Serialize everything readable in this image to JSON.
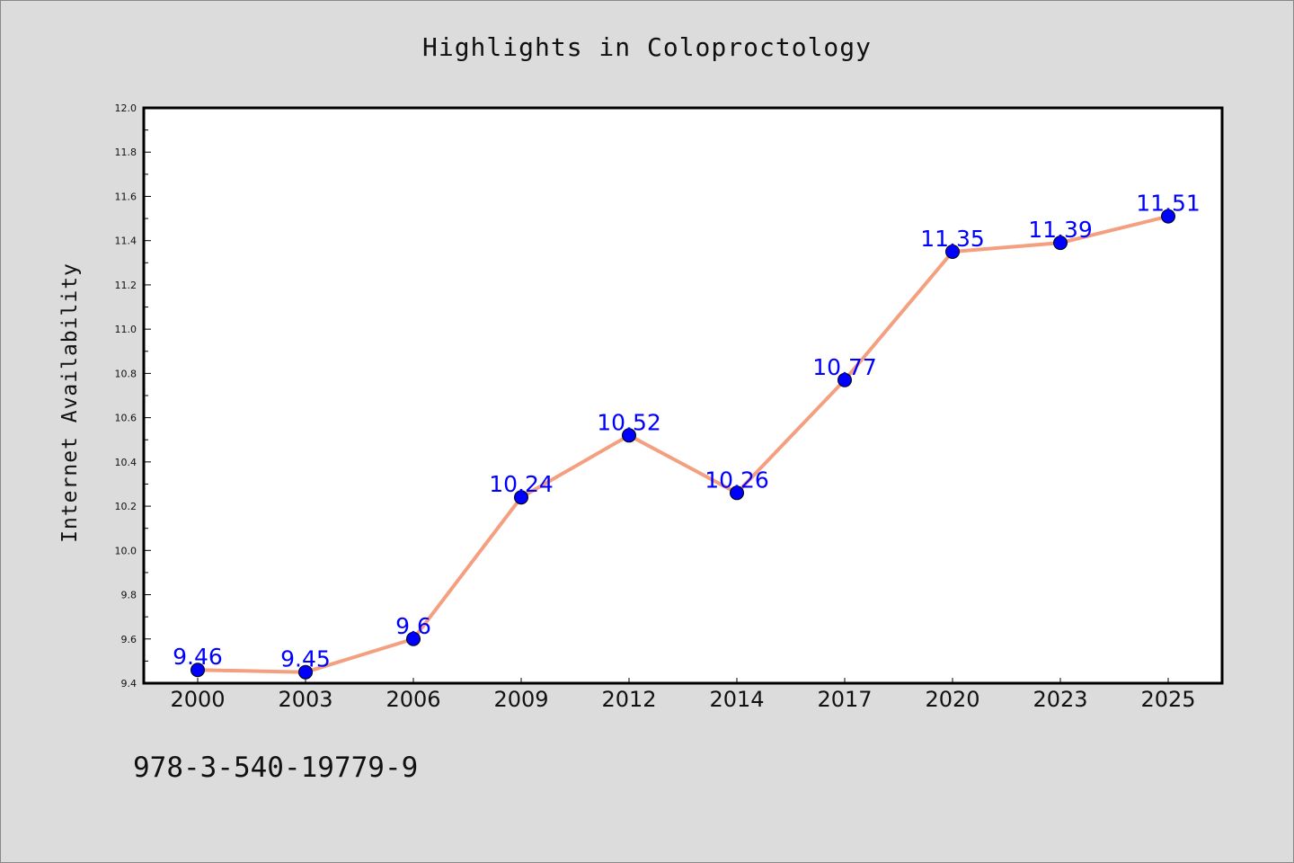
{
  "title": "Highlights in Coloproctology",
  "footer_code": "978-3-540-19779-9",
  "colors": {
    "background": "#dcdcdc",
    "plot_background": "#ffffff",
    "line": "#f4a080",
    "marker": "#0000ff",
    "data_label": "#0000ff"
  },
  "chart_data": {
    "type": "line",
    "title": "Highlights in Coloproctology",
    "xlabel": "",
    "ylabel": "Internet Availability",
    "categories": [
      "2000",
      "2003",
      "2006",
      "2009",
      "2012",
      "2014",
      "2017",
      "2020",
      "2023",
      "2025"
    ],
    "values": [
      9.46,
      9.45,
      9.6,
      10.24,
      10.52,
      10.26,
      10.77,
      11.35,
      11.39,
      11.51
    ],
    "data_labels": [
      "9.46",
      "9.45",
      "9.6",
      "10.24",
      "10.52",
      "10.26",
      "10.77",
      "11.35",
      "11.39",
      "11.51"
    ],
    "ylim": [
      9.4,
      12.0
    ],
    "yticks": [
      "9.4",
      "9.6",
      "9.8",
      "10.0",
      "10.2",
      "10.4",
      "10.6",
      "10.8",
      "11.0",
      "11.2",
      "11.4",
      "11.6",
      "11.8",
      "12.0"
    ],
    "grid": false,
    "legend": "none"
  }
}
